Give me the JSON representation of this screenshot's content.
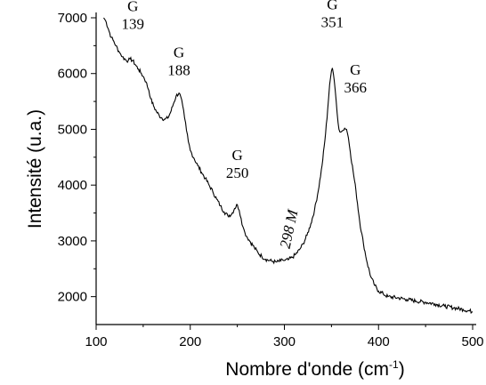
{
  "chart_data": {
    "type": "line",
    "title": "",
    "xlabel": "Nombre d'onde (cm",
    "xlabel_sup": "-1",
    "xlabel_close": ")",
    "ylabel": "Intensité (u.a.)",
    "xlim": [
      100,
      500
    ],
    "ylim": [
      1500,
      7000
    ],
    "xticks": [
      100,
      200,
      300,
      400,
      500
    ],
    "yticks": [
      2000,
      3000,
      4000,
      5000,
      6000,
      7000
    ],
    "grid": false,
    "line_color": "#000000",
    "series": [
      {
        "x": [
          108,
          110,
          113,
          116,
          118,
          121,
          124,
          126,
          128,
          131,
          134,
          136,
          139,
          142,
          145,
          148,
          150,
          153,
          156,
          158,
          161,
          164,
          167,
          170,
          173,
          176,
          179,
          182,
          185,
          188,
          190,
          192,
          194,
          196,
          198,
          200,
          204,
          208,
          212,
          216,
          220,
          224,
          228,
          232,
          236,
          240,
          244,
          247,
          250,
          252,
          254,
          256,
          258,
          260,
          264,
          268,
          272,
          276,
          280,
          284,
          288,
          292,
          296,
          298,
          300,
          304,
          308,
          312,
          316,
          320,
          324,
          328,
          332,
          336,
          340,
          343,
          346,
          348,
          350,
          351,
          352,
          354,
          356,
          358,
          360,
          362,
          364,
          366,
          368,
          370,
          373,
          376,
          380,
          384,
          388,
          392,
          396,
          400,
          405,
          410,
          420,
          430,
          440,
          450,
          460,
          470,
          480,
          490,
          500
        ],
        "y": [
          7000,
          6950,
          6800,
          6650,
          6600,
          6500,
          6400,
          6350,
          6300,
          6250,
          6230,
          6260,
          6230,
          6150,
          6080,
          6000,
          5950,
          5850,
          5700,
          5550,
          5420,
          5320,
          5250,
          5200,
          5180,
          5200,
          5300,
          5450,
          5600,
          5650,
          5580,
          5420,
          5200,
          4980,
          4780,
          4620,
          4480,
          4350,
          4230,
          4120,
          4000,
          3880,
          3750,
          3630,
          3520,
          3450,
          3480,
          3580,
          3650,
          3550,
          3400,
          3250,
          3150,
          3080,
          2980,
          2880,
          2790,
          2720,
          2670,
          2650,
          2630,
          2620,
          2640,
          2660,
          2650,
          2660,
          2700,
          2760,
          2840,
          2950,
          3100,
          3300,
          3550,
          3900,
          4350,
          4800,
          5350,
          5800,
          6050,
          6100,
          6000,
          5700,
          5300,
          5000,
          4950,
          4980,
          5020,
          5000,
          4850,
          4600,
          4250,
          3900,
          3350,
          2950,
          2600,
          2350,
          2200,
          2100,
          2050,
          2000,
          1980,
          1950,
          1920,
          1900,
          1870,
          1830,
          1800,
          1770,
          1730
        ]
      }
    ],
    "annotations": [
      {
        "letter": "G",
        "value": "139",
        "x": 139,
        "y": 6230
      },
      {
        "letter": "G",
        "value": "188",
        "x": 188,
        "y": 5650
      },
      {
        "letter": "G",
        "value": "250",
        "x": 250,
        "y": 3650
      },
      {
        "letter": "G",
        "value": "351",
        "x": 351,
        "y": 6100
      },
      {
        "letter": "G",
        "value": "366",
        "x": 366,
        "y": 5020
      }
    ],
    "rotated_annotation": {
      "value": "298",
      "letter": "M",
      "x": 298,
      "y": 2660
    }
  }
}
